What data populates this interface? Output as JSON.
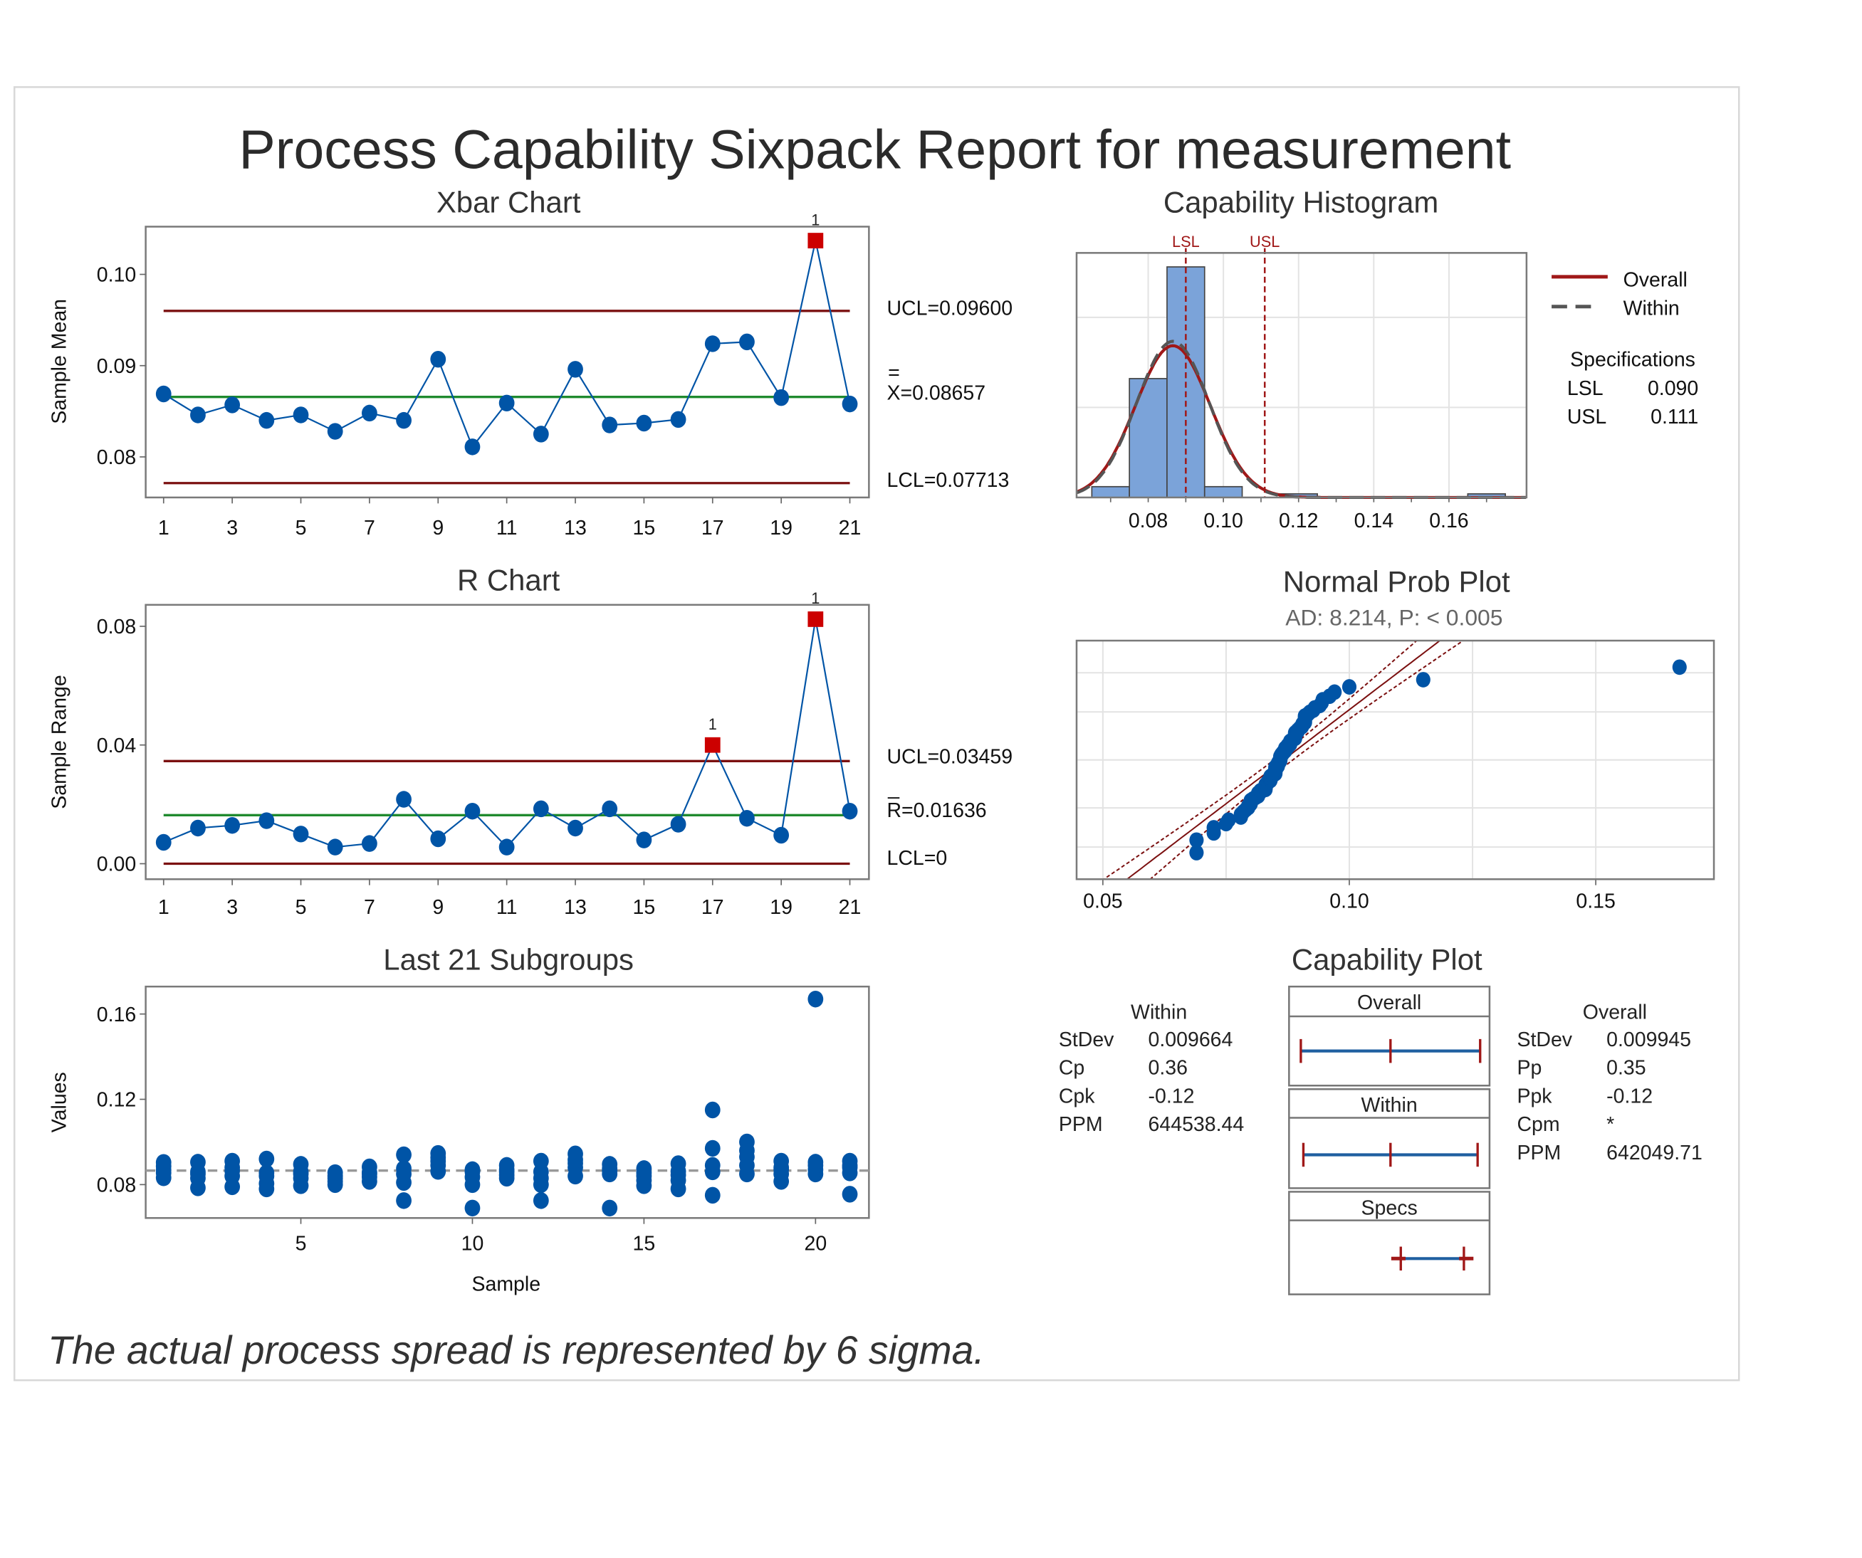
{
  "title": "Process Capability Sixpack Report for measurement",
  "footnote": "The actual process spread is represented by 6 sigma.",
  "colors": {
    "points": "#0054a6",
    "flagged": "#cc0000",
    "control_limit": "#7b1010",
    "center_line": "#1f8a2e",
    "histogram_bar": "#7ba3d9",
    "overall_curve": "#a01818",
    "within_curve": "#555555"
  },
  "chart_data": [
    {
      "type": "line",
      "title": "Xbar Chart",
      "ylabel": "Sample Mean",
      "xticks": [
        "1",
        "3",
        "5",
        "7",
        "9",
        "11",
        "13",
        "15",
        "17",
        "19",
        "21"
      ],
      "yticks": [
        0.08,
        0.09,
        0.1
      ],
      "ytick_labels": [
        "0.08",
        "0.09",
        "0.10"
      ],
      "ylim": [
        0.0745,
        0.1054
      ],
      "x": [
        1,
        2,
        3,
        4,
        5,
        6,
        7,
        8,
        9,
        10,
        11,
        12,
        13,
        14,
        15,
        16,
        17,
        18,
        19,
        20,
        21
      ],
      "values": [
        0.0869,
        0.0846,
        0.0857,
        0.084,
        0.0846,
        0.0828,
        0.0848,
        0.084,
        0.0907,
        0.0811,
        0.0859,
        0.0825,
        0.0896,
        0.0835,
        0.0837,
        0.0841,
        0.0924,
        0.0926,
        0.0865,
        0.1037,
        0.0858
      ],
      "ucl": 0.096,
      "center": 0.08657,
      "lcl": 0.07713,
      "ucl_label": "UCL=0.09600",
      "center_label": "X=0.08657",
      "center_bar": "=",
      "lcl_label": "LCL=0.07713",
      "flagged": [
        20
      ],
      "flag_label": "1"
    },
    {
      "type": "line",
      "title": "R Chart",
      "ylabel": "Sample Range",
      "xticks": [
        "1",
        "3",
        "5",
        "7",
        "9",
        "11",
        "13",
        "15",
        "17",
        "19",
        "21"
      ],
      "yticks": [
        0.0,
        0.04,
        0.08
      ],
      "ytick_labels": [
        "0.00",
        "0.04",
        "0.08"
      ],
      "ylim": [
        -0.005,
        0.0875
      ],
      "x": [
        1,
        2,
        3,
        4,
        5,
        6,
        7,
        8,
        9,
        10,
        11,
        12,
        13,
        14,
        15,
        16,
        17,
        18,
        19,
        20,
        21
      ],
      "values": [
        0.0072,
        0.012,
        0.0129,
        0.0145,
        0.01,
        0.0056,
        0.0068,
        0.0217,
        0.0084,
        0.0177,
        0.0056,
        0.0185,
        0.012,
        0.0185,
        0.008,
        0.0133,
        0.04,
        0.0153,
        0.0096,
        0.0824,
        0.0177
      ],
      "ucl": 0.03459,
      "center": 0.01636,
      "lcl": 0,
      "ucl_label": "UCL=0.03459",
      "center_label": "R=0.01636",
      "center_bar": "_",
      "lcl_label": "LCL=0",
      "flagged": [
        17,
        20
      ],
      "flag_label": "1"
    },
    {
      "type": "scatter",
      "title": "Last 21 Subgroups",
      "xlabel": "Sample",
      "ylabel": "Values",
      "xticks": [
        "5",
        "10",
        "15",
        "20"
      ],
      "yticks": [
        0.08,
        0.12,
        0.16
      ],
      "ytick_labels": [
        "0.08",
        "0.12",
        "0.16"
      ],
      "center": 0.08657,
      "subgroups": [
        [
          0.0832,
          0.0855,
          0.0868,
          0.0886,
          0.0904
        ],
        [
          0.0785,
          0.083,
          0.085,
          0.086,
          0.0905
        ],
        [
          0.079,
          0.084,
          0.0865,
          0.088,
          0.091
        ],
        [
          0.078,
          0.0805,
          0.084,
          0.0855,
          0.092
        ],
        [
          0.0795,
          0.083,
          0.085,
          0.086,
          0.0895
        ],
        [
          0.08,
          0.0815,
          0.083,
          0.084,
          0.0856
        ],
        [
          0.0815,
          0.0835,
          0.085,
          0.0857,
          0.0883
        ],
        [
          0.0725,
          0.081,
          0.085,
          0.0875,
          0.094
        ],
        [
          0.0862,
          0.089,
          0.091,
          0.0927,
          0.0946
        ],
        [
          0.069,
          0.08,
          0.0835,
          0.086,
          0.087
        ],
        [
          0.083,
          0.0845,
          0.086,
          0.087,
          0.089
        ],
        [
          0.0725,
          0.08,
          0.083,
          0.086,
          0.091
        ],
        [
          0.084,
          0.088,
          0.09,
          0.0916,
          0.0944
        ],
        [
          0.069,
          0.085,
          0.0865,
          0.0875,
          0.0895
        ],
        [
          0.0795,
          0.082,
          0.084,
          0.0855,
          0.0875
        ],
        [
          0.078,
          0.082,
          0.0845,
          0.0862,
          0.0898
        ],
        [
          0.075,
          0.086,
          0.089,
          0.097,
          0.115
        ],
        [
          0.085,
          0.089,
          0.093,
          0.096,
          0.1
        ],
        [
          0.0815,
          0.085,
          0.087,
          0.088,
          0.091
        ],
        [
          0.085,
          0.087,
          0.089,
          0.0905,
          0.167
        ],
        [
          0.0755,
          0.0855,
          0.088,
          0.089,
          0.091
        ]
      ]
    },
    {
      "type": "bar",
      "title": "Capability Histogram",
      "xticks": [
        0.08,
        0.1,
        0.12,
        0.14,
        0.16
      ],
      "xtick_labels": [
        "0.08",
        "0.10",
        "0.12",
        "0.14",
        "0.16"
      ],
      "xlim": [
        0.061,
        0.181
      ],
      "ylim": [
        0,
        68
      ],
      "bins": [
        {
          "from": 0.065,
          "to": 0.075,
          "count": 3
        },
        {
          "from": 0.075,
          "to": 0.085,
          "count": 33
        },
        {
          "from": 0.085,
          "to": 0.095,
          "count": 64
        },
        {
          "from": 0.095,
          "to": 0.105,
          "count": 3
        },
        {
          "from": 0.115,
          "to": 0.125,
          "count": 1
        },
        {
          "from": 0.165,
          "to": 0.175,
          "count": 1
        }
      ],
      "lsl_label": "LSL",
      "usl_label": "USL",
      "legend": {
        "overall": "Overall",
        "within": "Within"
      },
      "specifications": {
        "heading": "Specifications",
        "lsl_label": "LSL",
        "lsl": "0.090",
        "usl_label": "USL",
        "usl": "0.111"
      },
      "mean": 0.08657,
      "sd_overall": 0.009945,
      "sd_within": 0.009664
    },
    {
      "type": "scatter",
      "title": "Normal Prob Plot",
      "subtitle": "AD: 8.214, P: < 0.005",
      "xticks": [
        0.05,
        0.1,
        0.15
      ],
      "xtick_labels": [
        "0.05",
        "0.10",
        "0.15"
      ],
      "xlim": [
        0.0447,
        0.1739
      ],
      "percent_gridlines": [
        1,
        10,
        50,
        90,
        99
      ]
    },
    {
      "type": "table",
      "title": "Capability Plot",
      "panels": [
        "Overall",
        "Within",
        "Specs"
      ],
      "within": {
        "heading": "Within",
        "rows": [
          [
            "StDev",
            "0.009664"
          ],
          [
            "Cp",
            "0.36"
          ],
          [
            "Cpk",
            "-0.12"
          ],
          [
            "PPM",
            "644538.44"
          ]
        ]
      },
      "overall": {
        "heading": "Overall",
        "rows": [
          [
            "StDev",
            "0.009945"
          ],
          [
            "Pp",
            "0.35"
          ],
          [
            "Ppk",
            "-0.12"
          ],
          [
            "Cpm",
            "*"
          ],
          [
            "PPM",
            "642049.71"
          ]
        ]
      }
    }
  ]
}
